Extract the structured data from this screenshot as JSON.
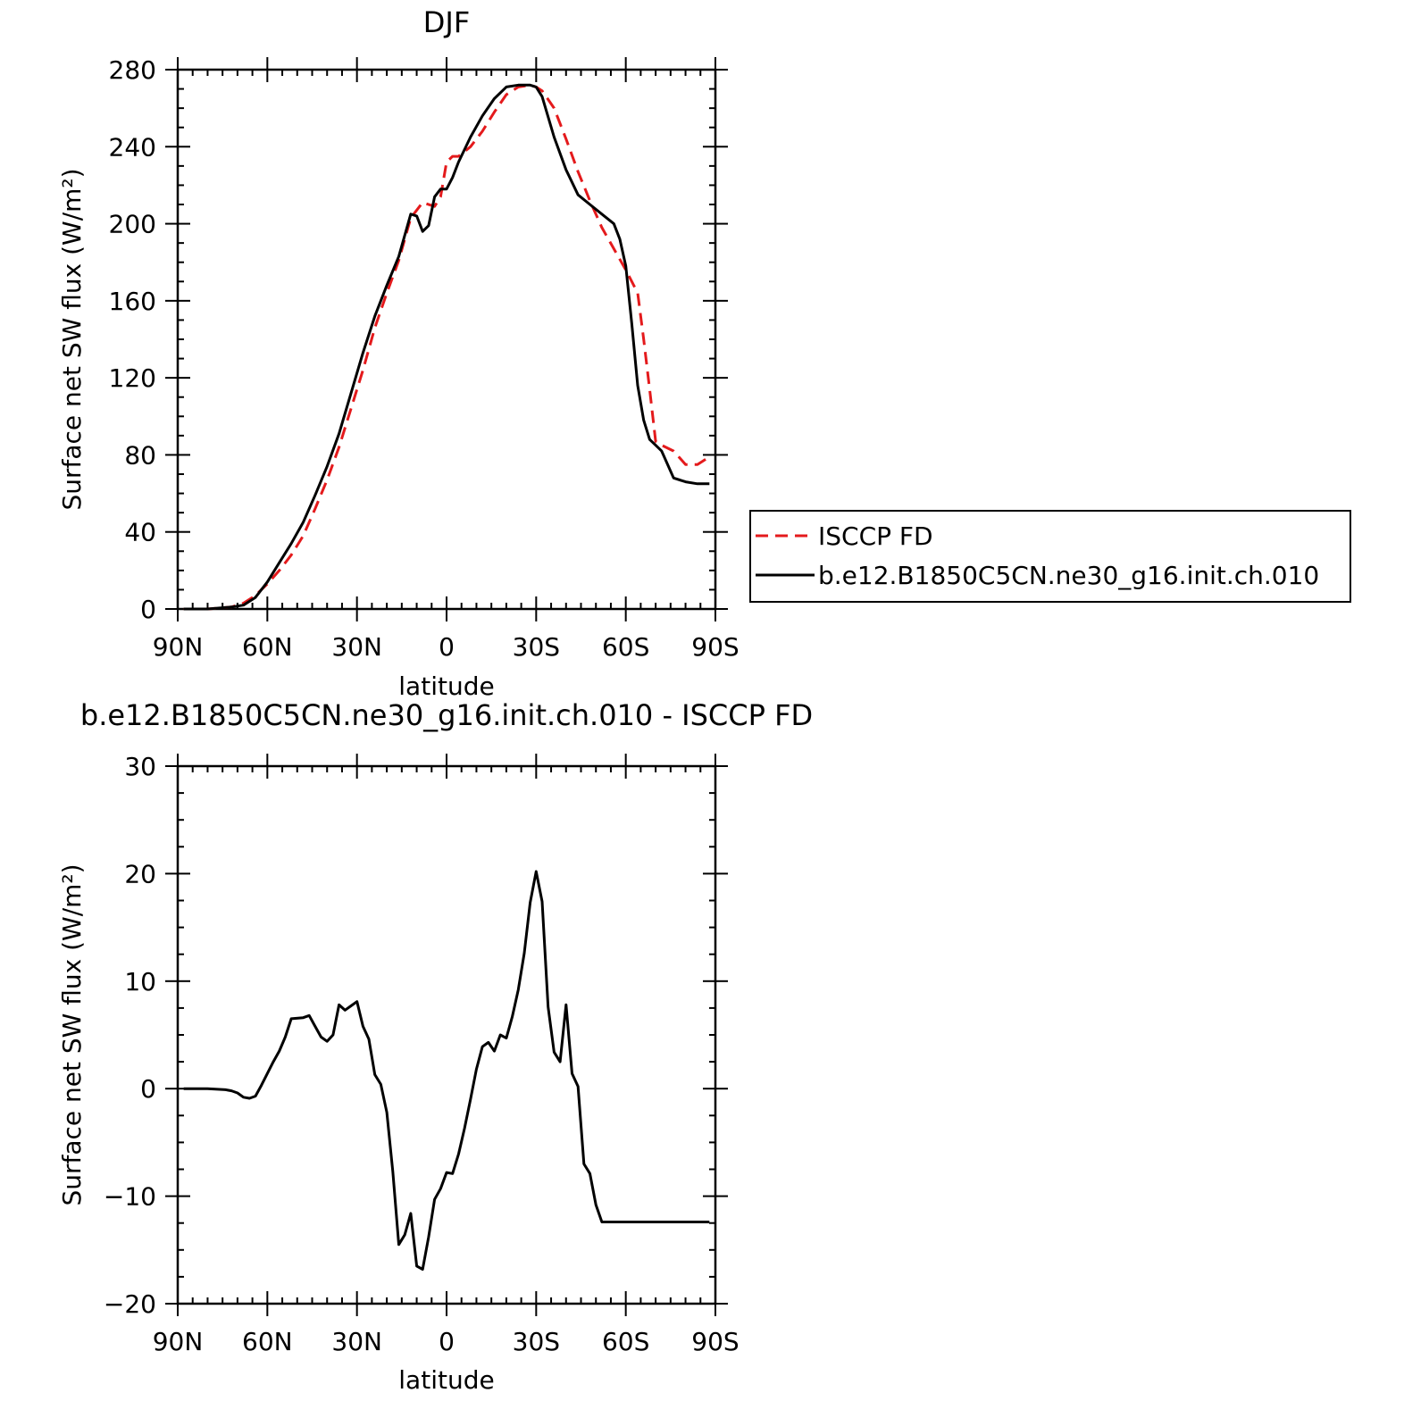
{
  "chart_data": [
    {
      "type": "line",
      "title": "DJF",
      "xlabel": "latitude",
      "ylabel": "Surface net SW flux (W/m²)",
      "xlim": [
        90,
        -90
      ],
      "ylim": [
        0,
        280
      ],
      "grid": false,
      "legend_position": "right",
      "x_ticks": [
        {
          "v": 90,
          "label": "90N"
        },
        {
          "v": 60,
          "label": "60N"
        },
        {
          "v": 30,
          "label": "30N"
        },
        {
          "v": 0,
          "label": "0"
        },
        {
          "v": -30,
          "label": "30S"
        },
        {
          "v": -60,
          "label": "60S"
        },
        {
          "v": -90,
          "label": "90S"
        }
      ],
      "y_ticks": [
        {
          "v": 0,
          "label": "0"
        },
        {
          "v": 40,
          "label": "40"
        },
        {
          "v": 80,
          "label": "80"
        },
        {
          "v": 120,
          "label": "120"
        },
        {
          "v": 160,
          "label": "160"
        },
        {
          "v": 200,
          "label": "200"
        },
        {
          "v": 240,
          "label": "240"
        },
        {
          "v": 280,
          "label": "280"
        }
      ],
      "series": [
        {
          "name": "ISCCP FD",
          "color": "#e41a1c",
          "style": "dashed",
          "x": [
            88,
            80,
            72,
            68,
            64,
            60,
            56,
            52,
            48,
            44,
            40,
            36,
            32,
            28,
            24,
            20,
            16,
            12,
            8,
            4,
            2,
            0,
            -2,
            -4,
            -8,
            -12,
            -16,
            -20,
            -24,
            -28,
            -30,
            -32,
            -36,
            -40,
            -44,
            -48,
            -52,
            -56,
            -60,
            -62,
            -64,
            -66,
            -68,
            -70,
            -72,
            -76,
            -80,
            -84,
            -88
          ],
          "y": [
            0,
            0,
            1,
            3,
            7,
            13,
            20,
            28,
            38,
            52,
            67,
            84,
            104,
            124,
            146,
            164,
            181,
            203,
            211,
            209,
            214,
            232,
            235,
            235,
            240,
            248,
            258,
            267,
            271,
            272,
            271,
            269,
            260,
            244,
            227,
            212,
            198,
            187,
            176,
            170,
            164,
            140,
            114,
            87,
            85,
            82,
            75,
            75,
            79
          ]
        },
        {
          "name": "b.e12.B1850C5CN.ne30_g16.init.ch.010",
          "color": "#000000",
          "style": "solid",
          "x": [
            88,
            80,
            72,
            68,
            64,
            60,
            56,
            52,
            48,
            44,
            40,
            36,
            32,
            28,
            24,
            20,
            16,
            12,
            10,
            8,
            6,
            4,
            2,
            0,
            -2,
            -4,
            -8,
            -12,
            -16,
            -20,
            -24,
            -28,
            -30,
            -32,
            -36,
            -40,
            -44,
            -48,
            -52,
            -56,
            -58,
            -60,
            -62,
            -64,
            -66,
            -68,
            -70,
            -72,
            -76,
            -80,
            -84,
            -88
          ],
          "y": [
            0,
            0,
            1,
            2,
            6,
            14,
            24,
            34,
            45,
            59,
            74,
            91,
            112,
            133,
            152,
            168,
            183,
            205,
            204,
            196,
            199,
            214,
            218,
            218,
            224,
            232,
            245,
            256,
            265,
            271,
            272,
            272,
            271,
            266,
            245,
            228,
            215,
            210,
            205,
            200,
            192,
            178,
            148,
            116,
            98,
            88,
            85,
            82,
            68,
            66,
            65,
            65
          ]
        }
      ]
    },
    {
      "type": "line",
      "title": "b.e12.B1850C5CN.ne30_g16.init.ch.010 - ISCCP FD",
      "xlabel": "latitude",
      "ylabel": "Surface net SW flux (W/m²)",
      "xlim": [
        90,
        -90
      ],
      "ylim": [
        -20,
        30
      ],
      "grid": false,
      "x_ticks": [
        {
          "v": 90,
          "label": "90N"
        },
        {
          "v": 60,
          "label": "60N"
        },
        {
          "v": 30,
          "label": "30N"
        },
        {
          "v": 0,
          "label": "0"
        },
        {
          "v": -30,
          "label": "30S"
        },
        {
          "v": -60,
          "label": "60S"
        },
        {
          "v": -90,
          "label": "90S"
        }
      ],
      "y_ticks": [
        {
          "v": -20,
          "label": "−20"
        },
        {
          "v": -10,
          "label": "−10"
        },
        {
          "v": 0,
          "label": "0"
        },
        {
          "v": 10,
          "label": "10"
        },
        {
          "v": 20,
          "label": "20"
        },
        {
          "v": 30,
          "label": "30"
        }
      ],
      "series": [
        {
          "color": "#000000",
          "style": "solid",
          "x": [
            88,
            80,
            74,
            72,
            70,
            68,
            66,
            64,
            62,
            60,
            58,
            56,
            54,
            52,
            48,
            46,
            44,
            42,
            40,
            38,
            36,
            34,
            32,
            30,
            28,
            26,
            24,
            22,
            20,
            18,
            16,
            14,
            12,
            10,
            8,
            6,
            4,
            2,
            0,
            -2,
            -4,
            -6,
            -8,
            -10,
            -12,
            -14,
            -16,
            -18,
            -20,
            -22,
            -24,
            -26,
            -28,
            -30,
            -32,
            -34,
            -36,
            -38,
            -40,
            -42,
            -44,
            -46,
            -48,
            -50,
            -52,
            -54,
            -56,
            -58,
            -60,
            -62,
            -64,
            -66,
            -68,
            -70,
            -72,
            -74,
            -76,
            -78,
            -80,
            -82,
            -84,
            -86,
            -88
          ],
          "y": [
            0,
            0,
            -0.1,
            -0.2,
            -0.4,
            -0.8,
            -0.9,
            -0.7,
            0.3,
            1.4,
            2.5,
            3.5,
            4.8,
            6.5,
            6.6,
            6.8,
            5.8,
            4.8,
            4.4,
            5.0,
            7.8,
            7.3,
            7.7,
            8.1,
            5.8,
            4.6,
            1.3,
            0.4,
            -2.2,
            -7.7,
            -14.5,
            -13.6,
            -11.6,
            -16.5,
            -16.8,
            -13.8,
            -10.3,
            -9.3,
            -7.8,
            -7.9,
            -6.1,
            -3.7,
            -1.0,
            1.8,
            3.9,
            4.3,
            3.5,
            5.0,
            4.7,
            6.7,
            9.2,
            12.6,
            17.3,
            20.2,
            17.4,
            7.6,
            3.4,
            2.5,
            7.8,
            1.4,
            0.2,
            -7.0,
            -7.9,
            -10.8,
            -12.4,
            -12.4,
            -12.4,
            -12.4,
            -12.4,
            -12.4,
            -12.4,
            -12.4,
            -12.4,
            -12.4,
            -12.4,
            -12.4,
            -12.4,
            -12.4,
            -12.4,
            -12.4,
            -12.4,
            -12.4,
            -12.4
          ]
        }
      ]
    }
  ]
}
